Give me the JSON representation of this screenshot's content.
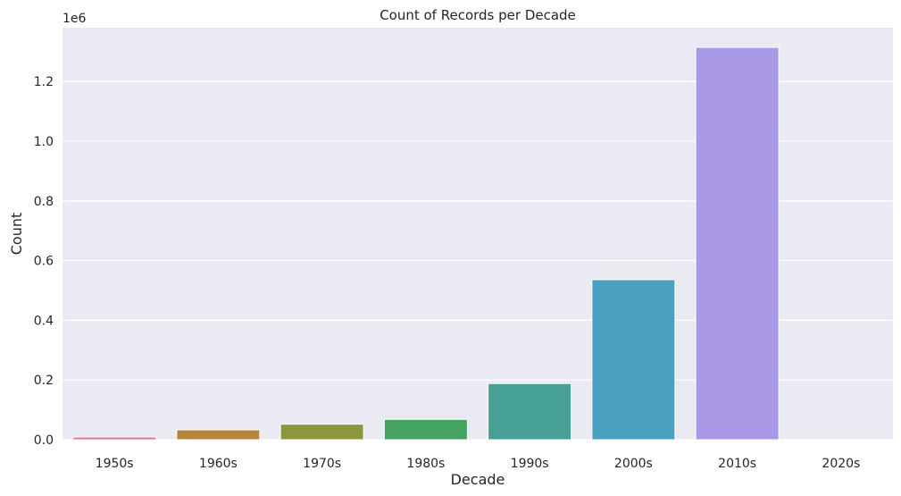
{
  "chart_data": {
    "type": "bar",
    "title": "Count of Records per Decade",
    "xlabel": "Decade",
    "ylabel": "Count",
    "offset_label": "1e6",
    "categories": [
      "1950s",
      "1960s",
      "1970s",
      "1980s",
      "1990s",
      "2000s",
      "2010s",
      "2020s"
    ],
    "values": [
      9000,
      33000,
      52000,
      68000,
      188000,
      536000,
      1314000,
      1000
    ],
    "ylim": [
      0,
      1380000
    ],
    "yticks": [
      0,
      200000,
      400000,
      600000,
      800000,
      1000000,
      1200000
    ],
    "ytick_labels": [
      "0.0",
      "0.2",
      "0.4",
      "0.6",
      "0.8",
      "1.0",
      "1.2"
    ],
    "grid": true,
    "colors": [
      "#e8728b",
      "#b8843a",
      "#8c973c",
      "#44a35f",
      "#46a095",
      "#4aa0c0",
      "#a998e6",
      "#e580d9"
    ],
    "background": "#eaeaf2"
  }
}
